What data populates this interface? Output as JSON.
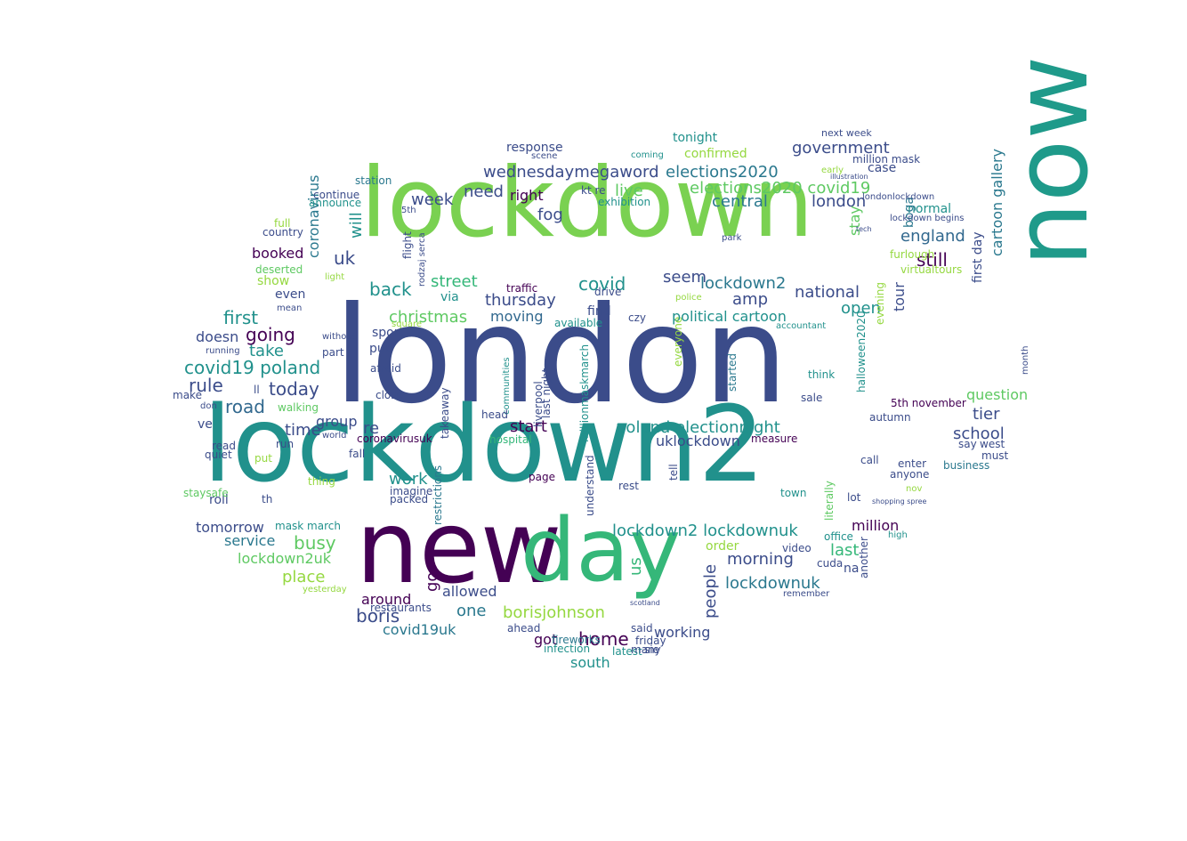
{
  "colors": {
    "background": "#ffffff",
    "palette": [
      "#3b4c8a",
      "#5ec962",
      "#21918c",
      "#440154",
      "#2a788e",
      "#35b779",
      "#95d840",
      "#fde725",
      "#472d7b",
      "#31688e"
    ]
  },
  "words": [
    {
      "text": "london",
      "color": "#3b4c8a"
    },
    {
      "text": "lockdown",
      "color": "#7ad151"
    },
    {
      "text": "lockdown2",
      "color": "#21918c"
    },
    {
      "text": "now",
      "color": "#1f9a8a"
    },
    {
      "text": "new",
      "color": "#440154"
    },
    {
      "text": "day",
      "color": "#35b779"
    },
    {
      "text": "wednesdaymegaword",
      "color": "#3b4c8a"
    },
    {
      "text": "elections2020",
      "color": "#2a788e"
    },
    {
      "text": "elections2020 covid19",
      "color": "#5ec962"
    },
    {
      "text": "government",
      "color": "#3b4c8a"
    },
    {
      "text": "central",
      "color": "#2a788e"
    },
    {
      "text": "london",
      "color": "#3b4c8a"
    },
    {
      "text": "england",
      "color": "#31688e"
    },
    {
      "text": "still",
      "color": "#440154"
    },
    {
      "text": "national",
      "color": "#3b4c8a"
    },
    {
      "text": "lockdown2",
      "color": "#2a788e"
    },
    {
      "text": "covid",
      "color": "#21918c"
    },
    {
      "text": "seem",
      "color": "#3b4c8a"
    },
    {
      "text": "street",
      "color": "#35b779"
    },
    {
      "text": "thursday",
      "color": "#3b4c8a"
    },
    {
      "text": "christmas",
      "color": "#5ec962"
    },
    {
      "text": "moving",
      "color": "#31688e"
    },
    {
      "text": "poland electionnight",
      "color": "#21918c"
    },
    {
      "text": "uklockdown",
      "color": "#3b4c8a"
    },
    {
      "text": "lockdown2 lockdownuk",
      "color": "#21918c"
    },
    {
      "text": "lockdownuk",
      "color": "#2a788e"
    },
    {
      "text": "boris",
      "color": "#3b4c8a"
    },
    {
      "text": "borisjohnson",
      "color": "#95d840"
    },
    {
      "text": "covid19uk",
      "color": "#2a788e"
    },
    {
      "text": "home",
      "color": "#440154"
    },
    {
      "text": "got",
      "color": "#440154"
    },
    {
      "text": "south",
      "color": "#21918c"
    },
    {
      "text": "working",
      "color": "#3b4c8a"
    },
    {
      "text": "morning",
      "color": "#3b4c8a"
    },
    {
      "text": "people",
      "color": "#3b4c8a"
    },
    {
      "text": "busy",
      "color": "#5ec962"
    },
    {
      "text": "place",
      "color": "#95d840"
    },
    {
      "text": "allowed",
      "color": "#3b4c8a"
    },
    {
      "text": "one",
      "color": "#2a788e"
    },
    {
      "text": "around",
      "color": "#440154"
    },
    {
      "text": "road",
      "color": "#31688e"
    },
    {
      "text": "rule",
      "color": "#3b4c8a"
    },
    {
      "text": "today",
      "color": "#3b4c8a"
    },
    {
      "text": "covid19 poland",
      "color": "#21918c"
    },
    {
      "text": "first",
      "color": "#21918c"
    },
    {
      "text": "going",
      "color": "#440154"
    },
    {
      "text": "take",
      "color": "#21918c"
    },
    {
      "text": "doesn",
      "color": "#3b4c8a"
    },
    {
      "text": "time",
      "color": "#3b4c8a"
    },
    {
      "text": "back",
      "color": "#21918c"
    },
    {
      "text": "week",
      "color": "#3b4c8a"
    },
    {
      "text": "need",
      "color": "#3b4c8a"
    },
    {
      "text": "right",
      "color": "#440154"
    },
    {
      "text": "fog",
      "color": "#3b4c8a"
    },
    {
      "text": "live",
      "color": "#5ec962"
    },
    {
      "text": "uk",
      "color": "#3b4c8a"
    },
    {
      "text": "will",
      "color": "#21918c"
    },
    {
      "text": "coronavirus",
      "color": "#2a788e"
    },
    {
      "text": "booked",
      "color": "#440154"
    },
    {
      "text": "work",
      "color": "#21918c"
    },
    {
      "text": "start",
      "color": "#440154"
    },
    {
      "text": "group",
      "color": "#3b4c8a"
    },
    {
      "text": "tomorrow",
      "color": "#3b4c8a"
    },
    {
      "text": "service",
      "color": "#2a788e"
    },
    {
      "text": "lockdown2uk",
      "color": "#5ec962"
    },
    {
      "text": "amp",
      "color": "#3b4c8a"
    },
    {
      "text": "political cartoon",
      "color": "#21918c"
    },
    {
      "text": "open",
      "color": "#21918c"
    },
    {
      "text": "tour",
      "color": "#3b4c8a"
    },
    {
      "text": "last",
      "color": "#35b779"
    },
    {
      "text": "million",
      "color": "#440154"
    },
    {
      "text": "school",
      "color": "#3b4c8a"
    },
    {
      "text": "tier",
      "color": "#3b4c8a"
    },
    {
      "text": "question",
      "color": "#5ec962"
    },
    {
      "text": "cartoon gallery",
      "color": "#2a788e"
    },
    {
      "text": "first day",
      "color": "#3b4c8a"
    },
    {
      "text": "normal",
      "color": "#21918c"
    },
    {
      "text": "tonight",
      "color": "#21918c"
    },
    {
      "text": "confirmed",
      "color": "#95d840"
    },
    {
      "text": "response",
      "color": "#3b4c8a"
    },
    {
      "text": "case",
      "color": "#3b4c8a"
    },
    {
      "text": "next week",
      "color": "#3b4c8a"
    },
    {
      "text": "stay",
      "color": "#5ec962"
    },
    {
      "text": "boga",
      "color": "#2a788e"
    },
    {
      "text": "evening",
      "color": "#95d840"
    },
    {
      "text": "sport",
      "color": "#3b4c8a"
    },
    {
      "text": "pub",
      "color": "#3b4c8a"
    },
    {
      "text": "re",
      "color": "#3b4c8a"
    },
    {
      "text": "via",
      "color": "#21918c"
    },
    {
      "text": "find",
      "color": "#3b4c8a"
    },
    {
      "text": "go",
      "color": "#440154"
    },
    {
      "text": "us",
      "color": "#35b779"
    },
    {
      "text": "order",
      "color": "#95d840"
    },
    {
      "text": "show",
      "color": "#95d840"
    },
    {
      "text": "even",
      "color": "#3b4c8a"
    },
    {
      "text": "ve",
      "color": "#3b4c8a"
    },
    {
      "text": "th",
      "color": "#3b4c8a"
    },
    {
      "text": "roll",
      "color": "#3b4c8a"
    },
    {
      "text": "anyone",
      "color": "#3b4c8a"
    },
    {
      "text": "na",
      "color": "#3b4c8a"
    },
    {
      "text": "5th november",
      "color": "#440154"
    },
    {
      "text": "restaurants",
      "color": "#3b4c8a"
    },
    {
      "text": "latest",
      "color": "#21918c"
    },
    {
      "text": "ahead",
      "color": "#3b4c8a"
    },
    {
      "text": "infection",
      "color": "#21918c"
    },
    {
      "text": "fireworks",
      "color": "#2a788e"
    },
    {
      "text": "say",
      "color": "#3b4c8a"
    },
    {
      "text": "packed",
      "color": "#3b4c8a"
    },
    {
      "text": "mask march",
      "color": "#21918c"
    },
    {
      "text": "staysafe",
      "color": "#5ec962"
    },
    {
      "text": "quiet",
      "color": "#3b4c8a"
    },
    {
      "text": "make",
      "color": "#3b4c8a"
    },
    {
      "text": "read",
      "color": "#3b4c8a"
    },
    {
      "text": "running",
      "color": "#3b4c8a"
    },
    {
      "text": "deserted",
      "color": "#5ec962"
    },
    {
      "text": "country",
      "color": "#3b4c8a"
    },
    {
      "text": "full",
      "color": "#95d840"
    },
    {
      "text": "continue",
      "color": "#3b4c8a"
    },
    {
      "text": "announce",
      "color": "#21918c"
    },
    {
      "text": "station",
      "color": "#2a788e"
    },
    {
      "text": "walking",
      "color": "#5ec962"
    },
    {
      "text": "coronavirusuk",
      "color": "#440154"
    },
    {
      "text": "close",
      "color": "#3b4c8a"
    },
    {
      "text": "afraid",
      "color": "#3b4c8a"
    },
    {
      "text": "imagine",
      "color": "#3b4c8a"
    },
    {
      "text": "page",
      "color": "#440154"
    },
    {
      "text": "rest",
      "color": "#3b4c8a"
    },
    {
      "text": "tell",
      "color": "#3b4c8a"
    },
    {
      "text": "hospital",
      "color": "#35b779"
    },
    {
      "text": "restrictions",
      "color": "#2a788e"
    },
    {
      "text": "understand",
      "color": "#3b4c8a"
    },
    {
      "text": "liverpool",
      "color": "#3b4c8a"
    },
    {
      "text": "last night",
      "color": "#3b4c8a"
    },
    {
      "text": "takeaway",
      "color": "#3b4c8a"
    },
    {
      "text": "millionmaskmarch",
      "color": "#21918c"
    },
    {
      "text": "measure",
      "color": "#440154"
    },
    {
      "text": "literally",
      "color": "#5ec962"
    },
    {
      "text": "town",
      "color": "#21918c"
    },
    {
      "text": "office",
      "color": "#21918c"
    },
    {
      "text": "video",
      "color": "#3b4c8a"
    },
    {
      "text": "cuda",
      "color": "#3b4c8a"
    },
    {
      "text": "another",
      "color": "#3b4c8a"
    },
    {
      "text": "lot",
      "color": "#3b4c8a"
    },
    {
      "text": "call",
      "color": "#3b4c8a"
    },
    {
      "text": "enter",
      "color": "#3b4c8a"
    },
    {
      "text": "business",
      "color": "#2a788e"
    },
    {
      "text": "must",
      "color": "#3b4c8a"
    },
    {
      "text": "west",
      "color": "#3b4c8a"
    },
    {
      "text": "autumn",
      "color": "#3b4c8a"
    },
    {
      "text": "sale",
      "color": "#3b4c8a"
    },
    {
      "text": "think",
      "color": "#21918c"
    },
    {
      "text": "started",
      "color": "#2a788e"
    },
    {
      "text": "everyone",
      "color": "#95d840"
    },
    {
      "text": "available",
      "color": "#21918c"
    },
    {
      "text": "czy",
      "color": "#3b4c8a"
    },
    {
      "text": "drive",
      "color": "#3b4c8a"
    },
    {
      "text": "traffic",
      "color": "#440154"
    },
    {
      "text": "sie",
      "color": "#3b4c8a"
    },
    {
      "text": "many",
      "color": "#3b4c8a"
    },
    {
      "text": "friday",
      "color": "#3b4c8a"
    },
    {
      "text": "said",
      "color": "#3b4c8a"
    },
    {
      "text": "kt re",
      "color": "#3b4c8a"
    },
    {
      "text": "exhibition",
      "color": "#21918c"
    },
    {
      "text": "scene",
      "color": "#3b4c8a"
    },
    {
      "text": "coming",
      "color": "#21918c"
    },
    {
      "text": "early",
      "color": "#95d840"
    },
    {
      "text": "million mask",
      "color": "#3b4c8a"
    },
    {
      "text": "londonlockdown",
      "color": "#3b4c8a"
    },
    {
      "text": "lockdown begins",
      "color": "#3b4c8a"
    },
    {
      "text": "virtualtours",
      "color": "#95d840"
    },
    {
      "text": "furlough",
      "color": "#95d840"
    },
    {
      "text": "month",
      "color": "#3b4c8a"
    },
    {
      "text": "halloween2020",
      "color": "#21918c"
    },
    {
      "text": "5th",
      "color": "#3b4c8a"
    },
    {
      "text": "flight",
      "color": "#3b4c8a"
    },
    {
      "text": "rodzaj serca",
      "color": "#3b4c8a"
    },
    {
      "text": "square",
      "color": "#95d840"
    },
    {
      "text": "communities",
      "color": "#21918c"
    },
    {
      "text": "head",
      "color": "#3b4c8a"
    },
    {
      "text": "accountant",
      "color": "#21918c"
    },
    {
      "text": "police",
      "color": "#95d840"
    },
    {
      "text": "yesterday",
      "color": "#95d840"
    },
    {
      "text": "part",
      "color": "#3b4c8a"
    },
    {
      "text": "put",
      "color": "#95d840"
    },
    {
      "text": "thing",
      "color": "#95d840"
    },
    {
      "text": "run",
      "color": "#3b4c8a"
    },
    {
      "text": "fall",
      "color": "#3b4c8a"
    },
    {
      "text": "light",
      "color": "#95d840"
    },
    {
      "text": "without",
      "color": "#3b4c8a"
    },
    {
      "text": "mean",
      "color": "#3b4c8a"
    },
    {
      "text": "ll",
      "color": "#3b4c8a"
    },
    {
      "text": "don",
      "color": "#3b4c8a"
    },
    {
      "text": "world",
      "color": "#3b4c8a"
    },
    {
      "text": "high",
      "color": "#21918c"
    },
    {
      "text": "nov",
      "color": "#95d840"
    },
    {
      "text": "remember",
      "color": "#3b4c8a"
    },
    {
      "text": "scotland",
      "color": "#3b4c8a"
    },
    {
      "text": "park",
      "color": "#3b4c8a"
    },
    {
      "text": "illustration",
      "color": "#3b4c8a"
    },
    {
      "text": "tech",
      "color": "#3b4c8a"
    },
    {
      "text": "shopping spree",
      "color": "#3b4c8a"
    }
  ]
}
